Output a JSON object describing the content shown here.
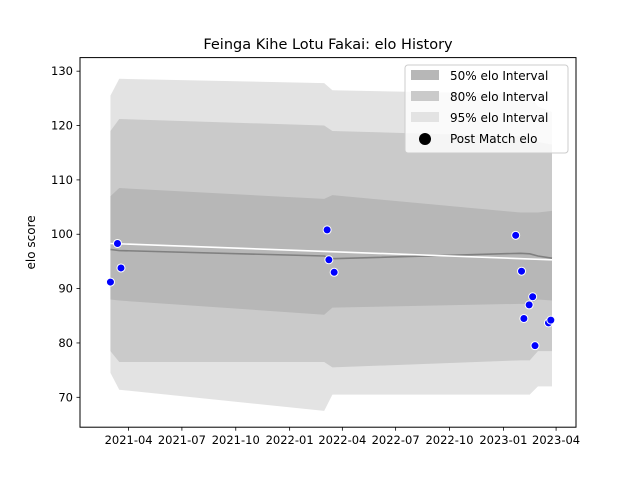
{
  "chart_data": {
    "type": "line",
    "title": "Feinga Kihe Lotu Fakai: elo History",
    "xlabel": "",
    "ylabel": "elo score",
    "xlim": [
      "2021-01-08",
      "2023-05-05"
    ],
    "ylim": [
      64.5,
      132.5
    ],
    "grid": false,
    "legend_position": "top-right",
    "x_ticks": [
      "2021-04",
      "2021-07",
      "2021-10",
      "2022-01",
      "2022-04",
      "2022-07",
      "2022-10",
      "2023-01",
      "2023-04"
    ],
    "x_tick_labels": [
      "2021-04",
      "2021-07",
      "2021-10",
      "2022-01",
      "2022-04",
      "2022-07",
      "2022-10",
      "2023-01",
      "2023-04"
    ],
    "y_ticks": [
      70,
      80,
      90,
      100,
      110,
      120,
      130
    ],
    "y_tick_labels": [
      "70",
      "80",
      "90",
      "100",
      "110",
      "120",
      "130"
    ],
    "bands": [
      {
        "name": "95% elo Interval",
        "color": "#e3e3e3",
        "x": [
          "2021-03-01",
          "2021-03-16",
          "2022-03-01",
          "2022-03-15",
          "2023-01-30",
          "2023-02-15",
          "2023-03-01",
          "2023-03-25"
        ],
        "lower": [
          74.5,
          71.4,
          67.5,
          70.5,
          70.5,
          70.5,
          72.0,
          72.0
        ],
        "upper": [
          125.5,
          128.6,
          127.8,
          126.5,
          125.8,
          125.8,
          123.5,
          122.5
        ]
      },
      {
        "name": "80% elo Interval",
        "color": "#cacaca",
        "x": [
          "2021-03-01",
          "2021-03-16",
          "2022-03-01",
          "2022-03-15",
          "2023-01-30",
          "2023-02-15",
          "2023-03-01",
          "2023-03-25"
        ],
        "lower": [
          78.5,
          76.5,
          76.5,
          75.5,
          76.8,
          76.8,
          78.5,
          78.5
        ],
        "upper": [
          119.0,
          121.2,
          120.0,
          119.0,
          118.0,
          118.0,
          117.0,
          116.5
        ]
      },
      {
        "name": "50% elo Interval",
        "color": "#b7b7b7",
        "x": [
          "2021-03-01",
          "2021-03-16",
          "2022-03-01",
          "2022-03-15",
          "2023-01-30",
          "2023-02-15",
          "2023-03-01",
          "2023-03-25"
        ],
        "lower": [
          88.0,
          87.8,
          85.2,
          86.5,
          87.2,
          87.2,
          88.0,
          87.8
        ],
        "upper": [
          107.0,
          108.5,
          106.5,
          107.2,
          104.0,
          104.0,
          104.0,
          104.3
        ]
      }
    ],
    "series": [
      {
        "type": "line",
        "color": "#808080",
        "x": [
          "2021-03-01",
          "2021-03-16",
          "2022-03-01",
          "2022-03-15",
          "2023-01-30",
          "2023-02-15",
          "2023-03-01",
          "2023-03-25"
        ],
        "y": [
          97.2,
          97.0,
          96.0,
          95.5,
          96.5,
          96.4,
          96.0,
          95.6
        ]
      },
      {
        "type": "line",
        "color": "#ffffff",
        "x": [
          "2021-03-01",
          "2023-03-25"
        ],
        "y": [
          98.3,
          95.3
        ]
      },
      {
        "name": "Post Match elo",
        "type": "scatter",
        "color": "#0000ff",
        "x": [
          "2021-03-01",
          "2021-03-13",
          "2021-03-19",
          "2022-03-06",
          "2022-03-09",
          "2022-03-18",
          "2023-01-22",
          "2023-02-01",
          "2023-02-05",
          "2023-02-14",
          "2023-02-20",
          "2023-02-24",
          "2023-03-19",
          "2023-03-23"
        ],
        "y": [
          91.2,
          98.3,
          93.8,
          100.8,
          95.3,
          93.0,
          99.8,
          93.2,
          84.5,
          87.0,
          88.5,
          79.5,
          83.7,
          84.2
        ]
      }
    ]
  }
}
